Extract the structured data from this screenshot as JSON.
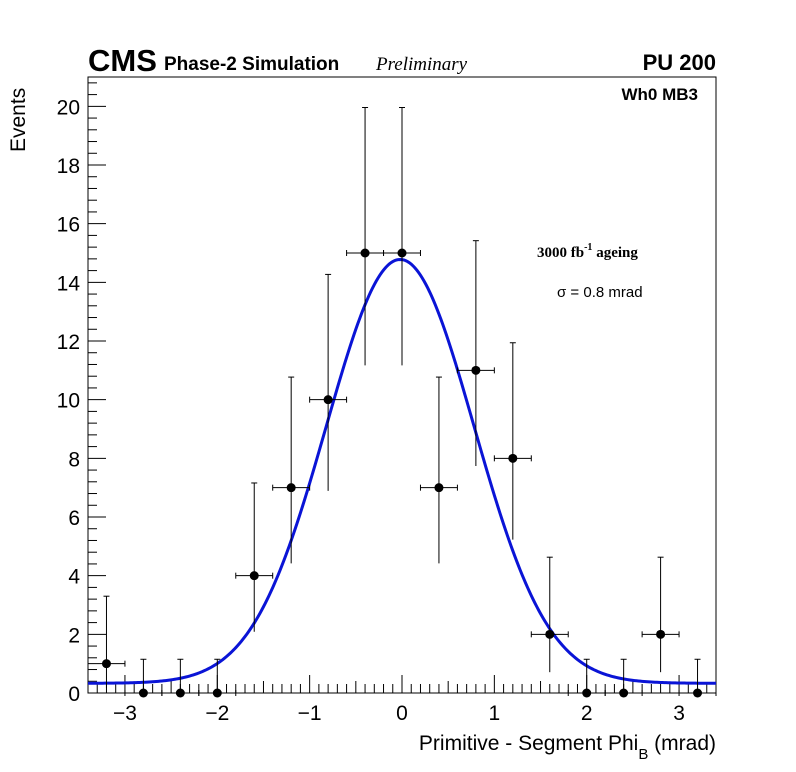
{
  "header": {
    "experiment": "CMS",
    "simulation": "Phase-2 Simulation",
    "status": "Preliminary",
    "pileup": "PU 200"
  },
  "chart_data": {
    "type": "scatter",
    "title": "",
    "xlabel_main": "Primitive - Segment Phi",
    "xlabel_sub": "B",
    "xlabel_unit": " (mrad)",
    "ylabel": "Events",
    "xlim": [
      -3.4,
      3.4
    ],
    "ylim": [
      0,
      21
    ],
    "x_ticks": [
      -3,
      -2,
      -1,
      0,
      1,
      2,
      3
    ],
    "x_tick_labels": [
      "−3",
      "−2",
      "−1",
      "0",
      "1",
      "2",
      "3"
    ],
    "y_ticks": [
      0,
      2,
      4,
      6,
      8,
      10,
      12,
      14,
      16,
      18,
      20
    ],
    "y_tick_labels": [
      "0",
      "2",
      "4",
      "6",
      "8",
      "10",
      "12",
      "14",
      "16",
      "18",
      "20"
    ],
    "bin_half_width": 0.2,
    "series": [
      {
        "name": "data",
        "color": "#000000",
        "x": [
          -3.2,
          -2.8,
          -2.4,
          -2.0,
          -1.6,
          -1.2,
          -0.8,
          -0.4,
          0.0,
          0.4,
          0.8,
          1.2,
          1.6,
          2.0,
          2.4,
          2.8,
          3.2
        ],
        "y": [
          1,
          0,
          0,
          0,
          4,
          7,
          10,
          15,
          15,
          7,
          11,
          8,
          2,
          0,
          0,
          2,
          0
        ],
        "err_up": [
          2.3,
          1.15,
          1.15,
          1.15,
          3.16,
          3.77,
          4.27,
          4.96,
          4.96,
          3.77,
          4.42,
          3.94,
          2.63,
          1.15,
          1.15,
          2.63,
          1.15
        ],
        "err_down": [
          0.83,
          0,
          0,
          0,
          1.91,
          2.58,
          3.11,
          3.83,
          3.83,
          2.58,
          3.26,
          2.77,
          1.29,
          0,
          0,
          1.29,
          0
        ]
      },
      {
        "name": "gaussian fit",
        "type": "line",
        "color": "#0a14d6",
        "function": "gaussian_plus_constant",
        "amplitude": 14.45,
        "mean": -0.02,
        "sigma": 0.8,
        "constant": 0.33
      }
    ],
    "annotations": {
      "category": "Wh0 MB3",
      "ageing_prefix": "3000 fb",
      "ageing_sup": "-1",
      "ageing_suffix": " ageing",
      "sigma_text": "σ = 0.8 mrad"
    }
  }
}
